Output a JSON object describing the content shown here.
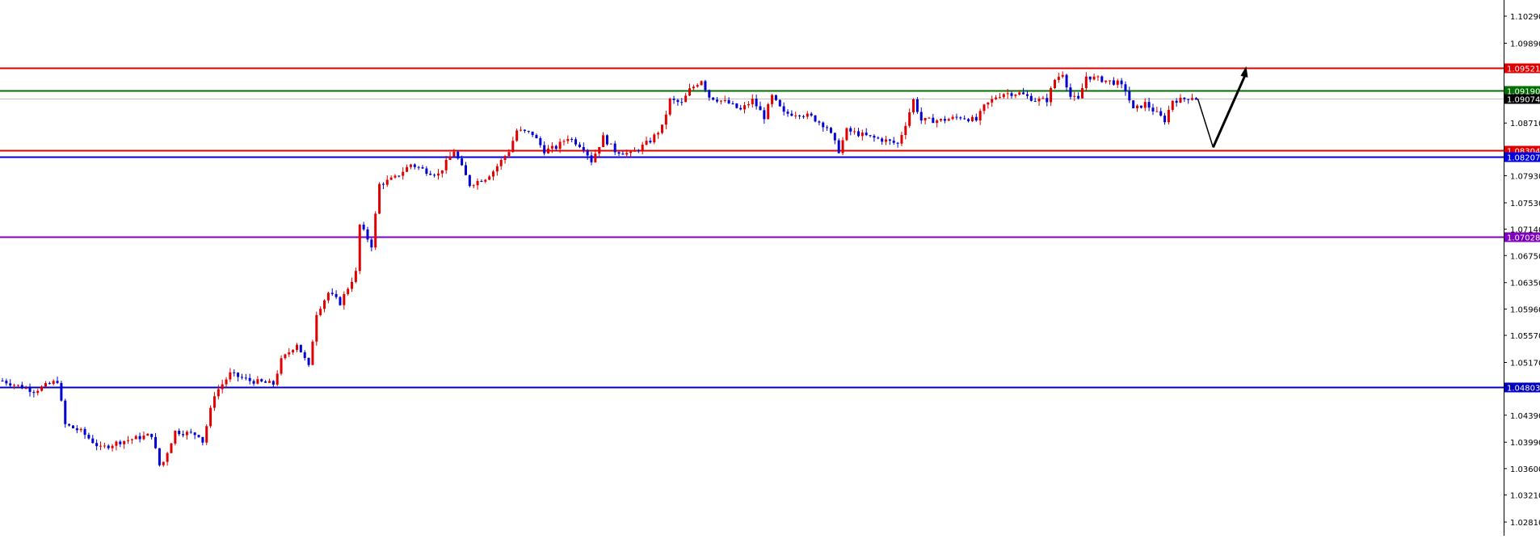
{
  "chart_data": {
    "type": "candlestick",
    "title": "",
    "xlabel": "",
    "ylabel": "",
    "ylim": [
      1.0262,
      1.1052
    ],
    "grid": false,
    "y_ticks": [
      "1.10290",
      "1.09890",
      "1.08710",
      "1.07930",
      "1.07530",
      "1.07140",
      "1.06750",
      "1.06350",
      "1.05960",
      "1.05570",
      "1.05170",
      "1.04390",
      "1.03990",
      "1.03600",
      "1.03210",
      "1.02810"
    ],
    "colors": {
      "up": "#e00000",
      "down": "#0000d0",
      "axis": "#000000"
    },
    "levels": [
      {
        "price": 1.09521,
        "label": "1.09521",
        "color": "#e00000"
      },
      {
        "price": 1.0919,
        "label": "1.09190",
        "color": "#007000"
      },
      {
        "price": 1.09074,
        "label": "1.09074",
        "color": "#000000",
        "line_color": "#c0c0c0"
      },
      {
        "price": 1.08304,
        "label": "1.08304",
        "color": "#e00000"
      },
      {
        "price": 1.08207,
        "label": "1.08207",
        "color": "#0000e0"
      },
      {
        "price": 1.07028,
        "label": "1.07028",
        "color": "#8000c0"
      },
      {
        "price": 1.04803,
        "label": "1.04803",
        "color": "#0000c0"
      }
    ],
    "price_path": [
      [
        0,
        1.049
      ],
      [
        8,
        1.0475
      ],
      [
        14,
        1.049
      ],
      [
        16,
        1.0425
      ],
      [
        20,
        1.0415
      ],
      [
        25,
        1.039
      ],
      [
        30,
        1.04
      ],
      [
        38,
        1.041
      ],
      [
        40,
        1.0365
      ],
      [
        41,
        1.037
      ],
      [
        44,
        1.0415
      ],
      [
        50,
        1.041
      ],
      [
        51,
        1.04
      ],
      [
        54,
        1.047
      ],
      [
        58,
        1.05
      ],
      [
        63,
        1.049
      ],
      [
        69,
        1.0485
      ],
      [
        71,
        1.052
      ],
      [
        75,
        1.0545
      ],
      [
        78,
        1.051
      ],
      [
        80,
        1.059
      ],
      [
        83,
        1.062
      ],
      [
        86,
        1.0605
      ],
      [
        90,
        1.065
      ],
      [
        91,
        1.072
      ],
      [
        94,
        1.069
      ],
      [
        96,
        1.078
      ],
      [
        100,
        1.079
      ],
      [
        104,
        1.081
      ],
      [
        108,
        1.08
      ],
      [
        111,
        1.0795
      ],
      [
        115,
        1.083
      ],
      [
        119,
        1.078
      ],
      [
        123,
        1.079
      ],
      [
        125,
        1.08
      ],
      [
        129,
        1.083
      ],
      [
        131,
        1.086
      ],
      [
        135,
        1.0855
      ],
      [
        138,
        1.083
      ],
      [
        141,
        1.0835
      ],
      [
        144,
        1.085
      ],
      [
        148,
        1.0835
      ],
      [
        150,
        1.0815
      ],
      [
        153,
        1.085
      ],
      [
        156,
        1.083
      ],
      [
        160,
        1.0825
      ],
      [
        165,
        1.0845
      ],
      [
        168,
        1.0865
      ],
      [
        170,
        1.0905
      ],
      [
        173,
        1.09
      ],
      [
        175,
        1.092
      ],
      [
        178,
        1.0935
      ],
      [
        180,
        1.091
      ],
      [
        185,
        1.09
      ],
      [
        188,
        1.089
      ],
      [
        191,
        1.0905
      ],
      [
        194,
        1.088
      ],
      [
        196,
        1.091
      ],
      [
        199,
        1.0885
      ],
      [
        203,
        1.0885
      ],
      [
        206,
        1.088
      ],
      [
        210,
        1.0865
      ],
      [
        213,
        1.083
      ],
      [
        215,
        1.086
      ],
      [
        218,
        1.0855
      ],
      [
        221,
        1.085
      ],
      [
        225,
        1.0845
      ],
      [
        228,
        1.084
      ],
      [
        230,
        1.087
      ],
      [
        232,
        1.0905
      ],
      [
        234,
        1.0875
      ],
      [
        239,
        1.0875
      ],
      [
        244,
        1.088
      ],
      [
        248,
        1.0875
      ],
      [
        250,
        1.0895
      ],
      [
        253,
        1.091
      ],
      [
        255,
        1.0915
      ],
      [
        259,
        1.0915
      ],
      [
        263,
        1.0905
      ],
      [
        266,
        1.0905
      ],
      [
        268,
        1.0935
      ],
      [
        270,
        1.0945
      ],
      [
        272,
        1.091
      ],
      [
        274,
        1.0905
      ],
      [
        276,
        1.094
      ],
      [
        280,
        1.0935
      ],
      [
        284,
        1.093
      ],
      [
        286,
        1.092
      ],
      [
        288,
        1.089
      ],
      [
        291,
        1.09
      ],
      [
        294,
        1.0885
      ],
      [
        296,
        1.0875
      ],
      [
        298,
        1.0905
      ],
      [
        300,
        1.0905
      ],
      [
        303,
        1.091
      ],
      [
        304,
        1.0907
      ]
    ],
    "projection": [
      1.0907,
      1.0835,
      1.0955
    ]
  }
}
